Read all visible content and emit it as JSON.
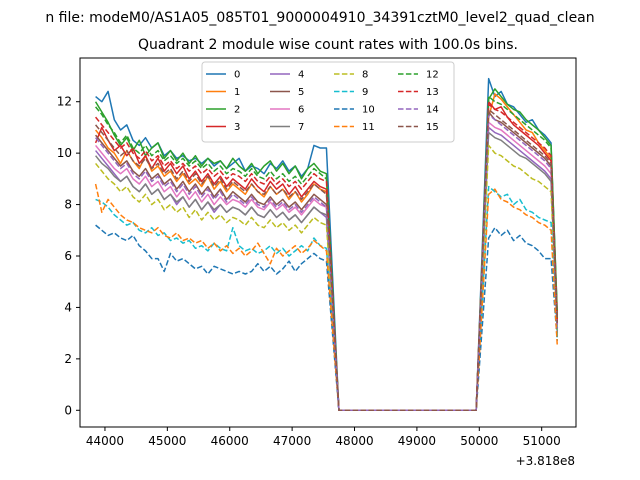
{
  "chart_data": {
    "type": "line",
    "suptitle": "n file: modeM0/AS1A05_085T01_9000004910_34391cztM0_level2_quad_clean",
    "title": "Quadrant 2 module wise count rates with 100.0s bins.",
    "xlabel": "",
    "ylabel": "",
    "x_offset_label": "+3.818e8",
    "xlim": [
      43600,
      51550
    ],
    "ylim": [
      -0.65,
      13.7
    ],
    "xticks": [
      44000,
      45000,
      46000,
      47000,
      48000,
      49000,
      50000,
      51000
    ],
    "yticks": [
      0,
      2,
      4,
      6,
      8,
      10,
      12
    ],
    "grid": false,
    "legend_position": "top-center",
    "legend_columns": 4,
    "segments": [
      {
        "x_start": 43850,
        "x_end": 47550,
        "step": 100
      },
      {
        "x_start": 47750,
        "x_end": 49950,
        "step": 100
      },
      {
        "x_start": 50150,
        "x_end": 51150,
        "step": 100
      }
    ],
    "series": [
      {
        "name": "0",
        "color": "#1f77b4",
        "dash": "solid",
        "first": [
          12.2,
          12.0,
          12.4,
          11.3,
          10.9,
          11.1,
          10.5,
          10.3,
          10.6,
          10.2,
          10.4,
          9.9,
          10.1,
          9.8,
          9.9,
          9.7,
          9.8,
          9.6,
          9.8,
          9.5,
          9.7,
          9.4,
          9.6,
          9.8,
          9.3,
          9.5,
          9.4,
          9.2,
          9.6,
          9.4,
          9.7,
          9.3,
          9.5,
          9.1,
          9.4,
          10.3,
          10.2,
          10.2
        ],
        "mid": 0,
        "last": [
          12.9,
          12.2,
          12.4,
          11.9,
          11.8,
          11.5,
          11.2,
          11.3,
          10.9,
          10.7,
          10.4
        ],
        "end": 3.7
      },
      {
        "name": "1",
        "color": "#ff7f0e",
        "dash": "solid",
        "first": [
          10.9,
          10.6,
          10.2,
          10.0,
          9.6,
          10.1,
          9.7,
          9.4,
          9.9,
          9.3,
          9.5,
          9.1,
          9.3,
          8.9,
          9.2,
          8.8,
          9.0,
          8.7,
          9.1,
          8.6,
          8.9,
          8.5,
          8.8,
          8.6,
          8.4,
          8.8,
          8.5,
          8.3,
          8.7,
          8.4,
          8.6,
          8.2,
          8.5,
          8.1,
          8.4,
          8.8,
          8.6,
          8.5
        ],
        "mid": 0,
        "last": [
          11.4,
          12.3,
          12.1,
          11.8,
          11.5,
          11.2,
          10.9,
          10.8,
          10.4,
          10.1,
          9.8
        ],
        "end": 3.5
      },
      {
        "name": "2",
        "color": "#2ca02c",
        "dash": "solid",
        "first": [
          12.0,
          11.6,
          11.2,
          10.7,
          10.3,
          10.6,
          10.1,
          10.5,
          9.9,
          10.2,
          10.4,
          9.8,
          10.1,
          9.7,
          10.0,
          9.6,
          9.9,
          9.5,
          9.8,
          9.6,
          9.7,
          9.4,
          9.8,
          9.5,
          9.3,
          9.6,
          9.2,
          9.5,
          9.7,
          9.3,
          9.6,
          9.2,
          9.5,
          9.0,
          9.4,
          9.6,
          9.3,
          9.2
        ],
        "mid": 0,
        "last": [
          12.1,
          12.5,
          12.2,
          11.9,
          11.7,
          11.6,
          11.3,
          11.1,
          10.9,
          10.6,
          10.3
        ],
        "end": 3.8
      },
      {
        "name": "3",
        "color": "#d62728",
        "dash": "solid",
        "first": [
          10.4,
          11.0,
          10.5,
          10.1,
          10.3,
          9.9,
          10.2,
          9.6,
          9.9,
          9.4,
          9.8,
          9.3,
          9.6,
          9.2,
          9.5,
          9.0,
          9.3,
          8.9,
          9.2,
          8.8,
          9.1,
          8.7,
          9.0,
          8.8,
          8.6,
          9.0,
          8.7,
          8.5,
          8.9,
          8.6,
          8.8,
          8.4,
          8.7,
          8.3,
          8.6,
          8.9,
          8.7,
          8.6
        ],
        "mid": 0,
        "last": [
          12.0,
          11.7,
          11.8,
          11.4,
          11.1,
          10.9,
          10.7,
          10.5,
          10.3,
          10.0,
          9.7
        ],
        "end": 3.2
      },
      {
        "name": "4",
        "color": "#9467bd",
        "dash": "solid",
        "first": [
          10.1,
          9.8,
          9.5,
          9.2,
          8.9,
          9.1,
          8.7,
          8.5,
          8.8,
          8.4,
          8.6,
          8.2,
          8.4,
          8.0,
          8.3,
          7.9,
          8.2,
          7.8,
          8.1,
          7.7,
          8.0,
          7.7,
          7.9,
          7.8,
          7.6,
          7.9,
          7.6,
          7.5,
          7.8,
          7.5,
          7.7,
          7.4,
          7.6,
          7.3,
          7.6,
          7.9,
          7.7,
          7.5
        ],
        "mid": 0,
        "last": [
          11.0,
          10.8,
          10.7,
          10.5,
          10.3,
          10.1,
          9.9,
          9.7,
          9.5,
          9.3,
          9.0
        ],
        "end": 3.1
      },
      {
        "name": "5",
        "color": "#8c564b",
        "dash": "solid",
        "first": [
          10.7,
          10.4,
          10.1,
          9.8,
          9.5,
          9.7,
          9.3,
          9.1,
          9.4,
          9.0,
          9.2,
          8.8,
          9.0,
          8.6,
          8.9,
          8.5,
          8.8,
          8.4,
          8.7,
          8.3,
          8.6,
          8.2,
          8.5,
          8.3,
          8.1,
          8.4,
          8.1,
          8.0,
          8.3,
          8.0,
          8.2,
          7.9,
          8.1,
          7.8,
          8.1,
          8.4,
          8.2,
          8.0
        ],
        "mid": 0,
        "last": [
          11.6,
          11.3,
          11.2,
          11.0,
          10.8,
          10.6,
          10.4,
          10.2,
          10.0,
          9.8,
          9.5
        ],
        "end": 3.3
      },
      {
        "name": "6",
        "color": "#e377c2",
        "dash": "solid",
        "first": [
          10.3,
          10.0,
          9.7,
          9.4,
          9.2,
          9.4,
          9.0,
          8.8,
          9.1,
          8.7,
          8.9,
          8.5,
          8.7,
          8.3,
          8.6,
          8.2,
          8.5,
          8.1,
          8.4,
          8.0,
          8.3,
          8.0,
          8.2,
          8.1,
          7.9,
          8.2,
          7.9,
          7.8,
          8.1,
          7.8,
          8.0,
          7.7,
          7.9,
          7.6,
          7.9,
          8.2,
          8.0,
          7.9
        ],
        "mid": 0,
        "last": [
          11.2,
          11.0,
          10.9,
          10.7,
          10.5,
          10.3,
          10.1,
          9.9,
          9.7,
          9.5,
          9.2
        ],
        "end": 3.2
      },
      {
        "name": "7",
        "color": "#7f7f7f",
        "dash": "solid",
        "first": [
          9.9,
          9.6,
          9.4,
          9.1,
          8.9,
          9.1,
          8.7,
          8.5,
          8.8,
          8.4,
          8.6,
          8.2,
          8.4,
          8.1,
          8.3,
          7.9,
          8.2,
          7.8,
          8.1,
          7.8,
          8.0,
          7.7,
          7.9,
          7.8,
          7.6,
          7.9,
          7.6,
          7.5,
          7.8,
          7.5,
          7.7,
          7.4,
          7.6,
          7.3,
          7.6,
          7.9,
          7.7,
          7.6
        ],
        "mid": 0,
        "last": [
          10.8,
          10.6,
          10.5,
          10.3,
          10.1,
          9.9,
          9.8,
          9.6,
          9.4,
          9.2,
          8.9
        ],
        "end": 3.0
      },
      {
        "name": "8",
        "color": "#bcbd22",
        "dash": "dashed",
        "first": [
          9.6,
          9.3,
          9.0,
          8.8,
          8.5,
          8.7,
          8.3,
          8.1,
          8.4,
          8.0,
          8.2,
          7.8,
          8.0,
          7.7,
          7.9,
          7.5,
          7.8,
          7.4,
          7.7,
          7.4,
          7.6,
          7.3,
          7.5,
          7.4,
          7.2,
          7.5,
          7.2,
          7.1,
          7.4,
          7.1,
          7.3,
          7.0,
          7.2,
          6.9,
          7.2,
          7.5,
          7.3,
          7.2
        ],
        "mid": 0,
        "last": [
          10.3,
          10.0,
          9.9,
          9.7,
          9.5,
          9.4,
          9.2,
          9.0,
          8.9,
          8.7,
          8.5
        ],
        "end": 2.9
      },
      {
        "name": "9",
        "color": "#17becf",
        "dash": "dashed",
        "first": [
          8.2,
          8.1,
          7.9,
          7.6,
          7.4,
          7.2,
          7.3,
          7.0,
          6.9,
          7.1,
          6.8,
          6.9,
          6.6,
          6.7,
          6.5,
          6.6,
          6.3,
          6.4,
          6.2,
          6.5,
          6.3,
          6.2,
          7.1,
          6.4,
          6.2,
          6.3,
          6.1,
          6.2,
          6.4,
          6.1,
          6.3,
          6.0,
          6.2,
          6.4,
          6.2,
          6.7,
          6.4,
          6.3
        ],
        "mid": 0,
        "last": [
          8.7,
          8.5,
          8.3,
          8.4,
          8.0,
          8.2,
          7.8,
          7.7,
          7.5,
          7.4,
          7.3
        ],
        "end": 2.8
      },
      {
        "name": "10",
        "color": "#1f77b4",
        "dash": "dashed",
        "first": [
          7.2,
          7.0,
          6.8,
          6.9,
          6.7,
          6.6,
          6.8,
          6.4,
          6.2,
          5.9,
          5.9,
          5.4,
          6.1,
          5.8,
          5.9,
          5.7,
          5.5,
          5.6,
          5.3,
          5.6,
          5.5,
          5.4,
          5.3,
          5.4,
          5.3,
          5.4,
          5.7,
          5.4,
          5.6,
          5.3,
          5.5,
          5.8,
          5.4,
          5.7,
          5.9,
          6.1,
          5.9,
          5.8
        ],
        "mid": 0,
        "last": [
          6.7,
          7.1,
          6.8,
          7.0,
          6.6,
          6.8,
          6.5,
          6.4,
          6.2,
          5.9,
          5.9
        ],
        "end": 2.7
      },
      {
        "name": "11",
        "color": "#ff7f0e",
        "dash": "dashed",
        "first": [
          8.8,
          7.7,
          8.2,
          7.9,
          7.6,
          7.4,
          7.3,
          7.1,
          7.0,
          6.9,
          7.1,
          6.8,
          6.7,
          6.9,
          6.6,
          6.7,
          6.5,
          6.6,
          6.3,
          6.5,
          6.2,
          6.4,
          6.1,
          6.3,
          6.0,
          6.2,
          6.5,
          6.1,
          5.7,
          6.3,
          6.0,
          6.2,
          6.4,
          6.1,
          6.3,
          6.6,
          6.4,
          6.2
        ],
        "mid": 0,
        "last": [
          8.4,
          8.6,
          8.2,
          8.1,
          7.9,
          7.8,
          7.6,
          7.5,
          7.3,
          7.2,
          7.0
        ],
        "end": 2.5
      },
      {
        "name": "12",
        "color": "#2ca02c",
        "dash": "dashed",
        "first": [
          11.8,
          11.5,
          11.1,
          10.8,
          10.4,
          10.7,
          10.2,
          10.0,
          10.3,
          9.9,
          10.1,
          9.7,
          9.9,
          9.6,
          9.8,
          9.5,
          9.7,
          9.4,
          9.6,
          9.3,
          9.5,
          9.2,
          9.4,
          9.3,
          9.1,
          9.4,
          9.1,
          9.0,
          9.3,
          9.0,
          9.2,
          8.9,
          9.1,
          8.8,
          9.1,
          9.4,
          9.2,
          9.0
        ],
        "mid": 0,
        "last": [
          12.2,
          12.0,
          11.9,
          11.7,
          11.5,
          11.3,
          11.1,
          10.9,
          10.7,
          10.5,
          10.2
        ],
        "end": 3.6
      },
      {
        "name": "13",
        "color": "#d62728",
        "dash": "dashed",
        "first": [
          11.4,
          11.1,
          10.8,
          10.5,
          10.2,
          10.4,
          10.0,
          9.8,
          10.1,
          9.7,
          9.9,
          9.5,
          9.7,
          9.4,
          9.6,
          9.3,
          9.5,
          9.2,
          9.4,
          9.1,
          9.3,
          9.0,
          9.2,
          9.1,
          8.9,
          9.2,
          8.9,
          8.8,
          9.1,
          8.8,
          9.0,
          8.7,
          8.9,
          8.6,
          8.9,
          9.2,
          9.0,
          8.9
        ],
        "mid": 0,
        "last": [
          11.9,
          11.7,
          11.6,
          11.4,
          11.2,
          11.0,
          10.8,
          10.6,
          10.4,
          10.2,
          9.9
        ],
        "end": 3.5
      },
      {
        "name": "14",
        "color": "#9467bd",
        "dash": "dashed",
        "first": [
          10.6,
          10.3,
          10.0,
          9.7,
          9.4,
          9.6,
          9.2,
          9.0,
          9.3,
          8.9,
          9.1,
          8.7,
          8.9,
          8.5,
          8.8,
          8.4,
          8.7,
          8.3,
          8.6,
          8.2,
          8.5,
          8.1,
          8.4,
          8.2,
          8.0,
          8.3,
          8.0,
          7.9,
          8.2,
          7.9,
          8.1,
          7.8,
          8.0,
          7.7,
          8.0,
          8.3,
          8.1,
          7.9
        ],
        "mid": 0,
        "last": [
          11.5,
          11.3,
          11.1,
          10.9,
          10.7,
          10.5,
          10.3,
          10.1,
          9.9,
          9.7,
          9.4
        ],
        "end": 3.2
      },
      {
        "name": "15",
        "color": "#8c564b",
        "dash": "dashed",
        "first": [
          11.1,
          10.8,
          10.5,
          10.2,
          9.9,
          10.1,
          9.7,
          9.5,
          9.8,
          9.4,
          9.6,
          9.2,
          9.4,
          9.0,
          9.3,
          8.9,
          9.2,
          8.8,
          9.1,
          8.7,
          9.0,
          8.6,
          8.9,
          8.7,
          8.5,
          8.8,
          8.5,
          8.4,
          8.7,
          8.4,
          8.6,
          8.3,
          8.5,
          8.2,
          8.5,
          8.8,
          8.6,
          8.4
        ],
        "mid": 0,
        "last": [
          11.7,
          11.5,
          11.3,
          11.1,
          10.9,
          10.7,
          10.5,
          10.3,
          10.1,
          9.9,
          9.6
        ],
        "end": 3.4
      }
    ]
  }
}
